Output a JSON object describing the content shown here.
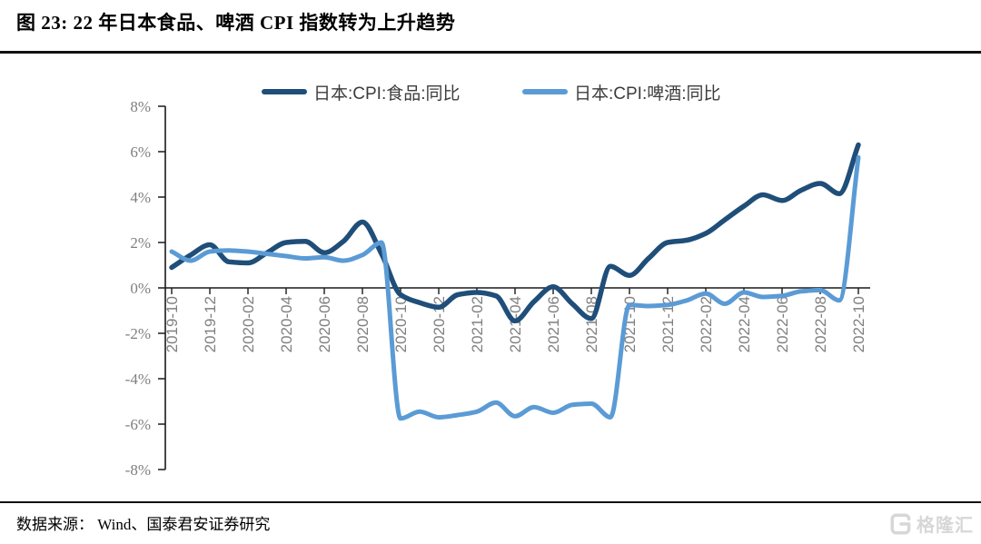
{
  "header": {
    "title": "图 23: 22 年日本食品、啤酒 CPI 指数转为上升趋势"
  },
  "footer": {
    "source": "数据来源： Wind、国泰君安证券研究",
    "logo_text": "格隆汇"
  },
  "colors": {
    "food_line": "#1f4e79",
    "beer_line": "#5b9bd5",
    "axis": "#1a1a1a",
    "axis_labels": "#7f7f7f",
    "watermark": "#d7d7d7"
  },
  "chart_data": {
    "type": "line",
    "title": "图 23: 22 年日本食品、啤酒 CPI 指数转为上升趋势",
    "xlabel": "",
    "ylabel": "",
    "ylim": [
      -8,
      8
    ],
    "y_tick_values": [
      8,
      6,
      4,
      2,
      0,
      -2,
      -4,
      -6,
      -8
    ],
    "y_tick_labels": [
      "8%",
      "6%",
      "4%",
      "2%",
      "0%",
      "-2%",
      "-4%",
      "-6%",
      "-8%"
    ],
    "grid": false,
    "legend_position": "top",
    "x_tick_every": 2,
    "x": [
      "2019-10",
      "2019-11",
      "2019-12",
      "2020-01",
      "2020-02",
      "2020-03",
      "2020-04",
      "2020-05",
      "2020-06",
      "2020-07",
      "2020-08",
      "2020-09",
      "2020-10",
      "2020-11",
      "2020-12",
      "2021-01",
      "2021-02",
      "2021-03",
      "2021-04",
      "2021-05",
      "2021-06",
      "2021-07",
      "2021-08",
      "2021-09",
      "2021-10",
      "2021-11",
      "2021-12",
      "2022-01",
      "2022-02",
      "2022-03",
      "2022-04",
      "2022-05",
      "2022-06",
      "2022-07",
      "2022-08",
      "2022-09",
      "2022-10"
    ],
    "shown_x_tick_labels": [
      "2019-10",
      "2019-12",
      "2020-02",
      "2020-04",
      "2020-06",
      "2020-08",
      "2020-10",
      "2020-12",
      "2021-02",
      "2021-04",
      "2021-06",
      "2021-08",
      "2021-10",
      "2021-12",
      "2022-02",
      "2022-04",
      "2022-06",
      "2022-08",
      "2022-10"
    ],
    "series": [
      {
        "name": "日本:CPI:食品:同比",
        "color": "#1f4e79",
        "values": [
          0.9,
          1.45,
          1.9,
          1.15,
          1.1,
          1.55,
          2.0,
          2.05,
          1.55,
          2.05,
          2.9,
          1.5,
          -0.3,
          -0.65,
          -0.85,
          -0.3,
          -0.2,
          -0.35,
          -1.45,
          -0.6,
          0.05,
          -0.7,
          -1.35,
          0.95,
          0.55,
          1.3,
          2.0,
          2.1,
          2.4,
          3.0,
          3.6,
          4.1,
          3.85,
          4.3,
          4.6,
          4.15,
          6.3
        ]
      },
      {
        "name": "日本:CPI:啤酒:同比",
        "color": "#5b9bd5",
        "values": [
          1.6,
          1.2,
          1.6,
          1.65,
          1.6,
          1.5,
          1.4,
          1.3,
          1.35,
          1.2,
          1.45,
          2.0,
          -5.75,
          -5.45,
          -5.7,
          -5.6,
          -5.45,
          -5.05,
          -5.65,
          -5.25,
          -5.5,
          -5.15,
          -5.1,
          -5.7,
          -0.75,
          -0.8,
          -0.75,
          -0.55,
          -0.25,
          -0.7,
          -0.2,
          -0.4,
          -0.35,
          -0.15,
          -0.1,
          -0.55,
          5.75
        ]
      }
    ]
  }
}
